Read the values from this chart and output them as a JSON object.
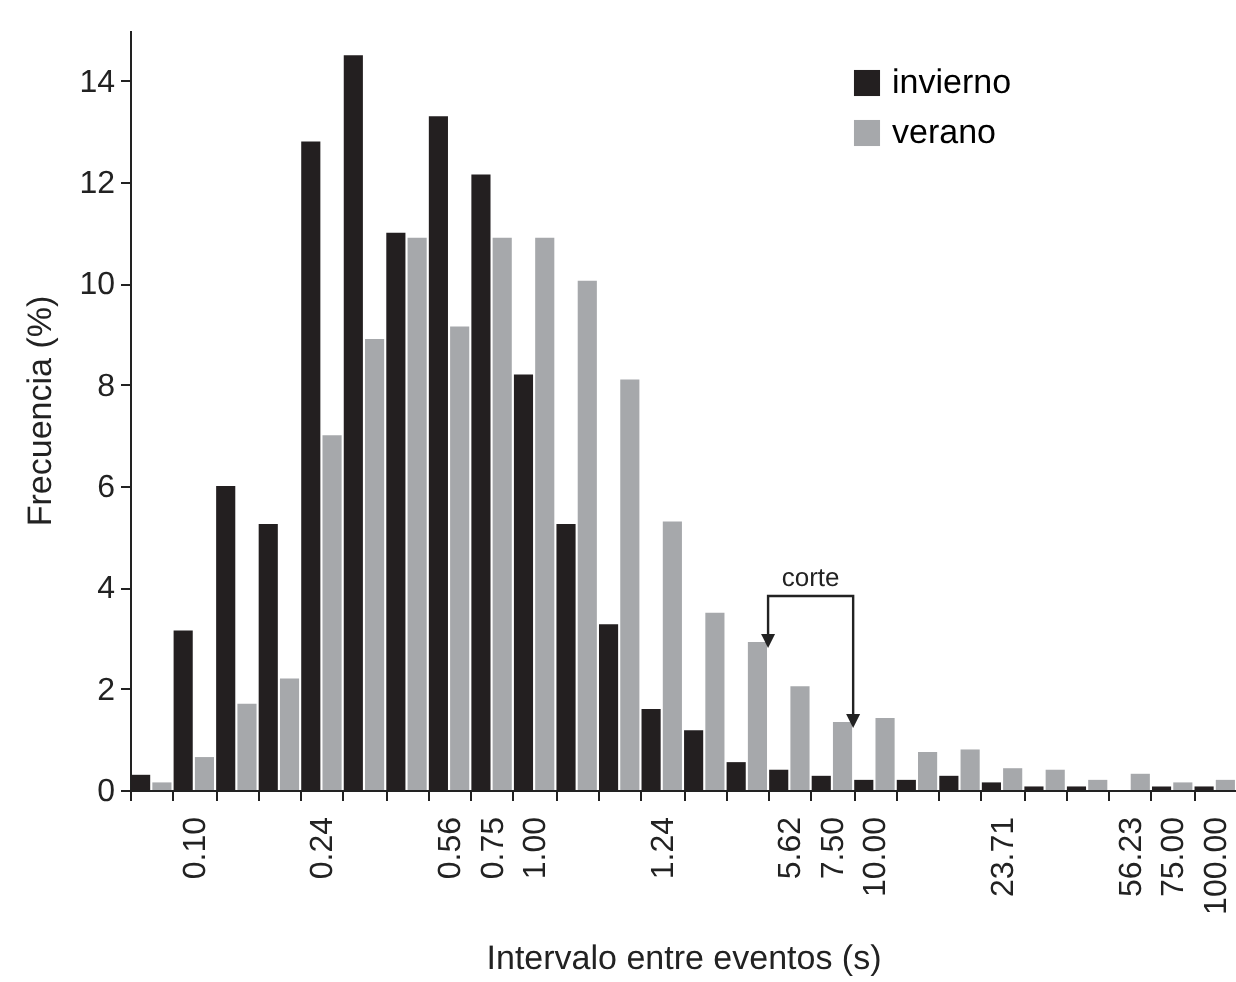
{
  "chart_data": {
    "type": "bar",
    "xlabel": "Intervalo entre eventos (s)",
    "ylabel": "Frecuencia (%)",
    "categories": [
      null,
      "0.10",
      null,
      null,
      "0.24",
      null,
      null,
      "0.56",
      "0.75",
      "1.00",
      null,
      null,
      "1.24",
      null,
      null,
      "5.62",
      "7.50",
      "10.00",
      null,
      null,
      "23.71",
      null,
      null,
      "56.23",
      "75.00",
      "100.00"
    ],
    "series": [
      {
        "name": "invierno",
        "color": "#231f20",
        "values": [
          0.3,
          3.15,
          6.0,
          5.25,
          12.8,
          14.5,
          11.0,
          13.3,
          12.15,
          8.2,
          5.25,
          3.27,
          1.6,
          1.18,
          0.55,
          0.4,
          0.28,
          0.2,
          0.2,
          0.28,
          0.15,
          0.07,
          0.07,
          0,
          0.07,
          0.07
        ]
      },
      {
        "name": "verano",
        "color": "#a6a8ab",
        "values": [
          0.15,
          0.65,
          1.7,
          2.2,
          7.0,
          8.9,
          10.9,
          9.15,
          10.9,
          10.9,
          10.05,
          8.1,
          5.3,
          3.5,
          2.92,
          2.05,
          1.34,
          1.42,
          0.75,
          0.8,
          0.43,
          0.4,
          0.2,
          0.32,
          0.15,
          0.2
        ]
      }
    ],
    "ylim": [
      0,
      15
    ],
    "yticks": [
      0,
      2,
      4,
      6,
      8,
      10,
      12,
      14
    ],
    "grid": false,
    "legend": "top right",
    "annotations": [
      "corte"
    ]
  }
}
